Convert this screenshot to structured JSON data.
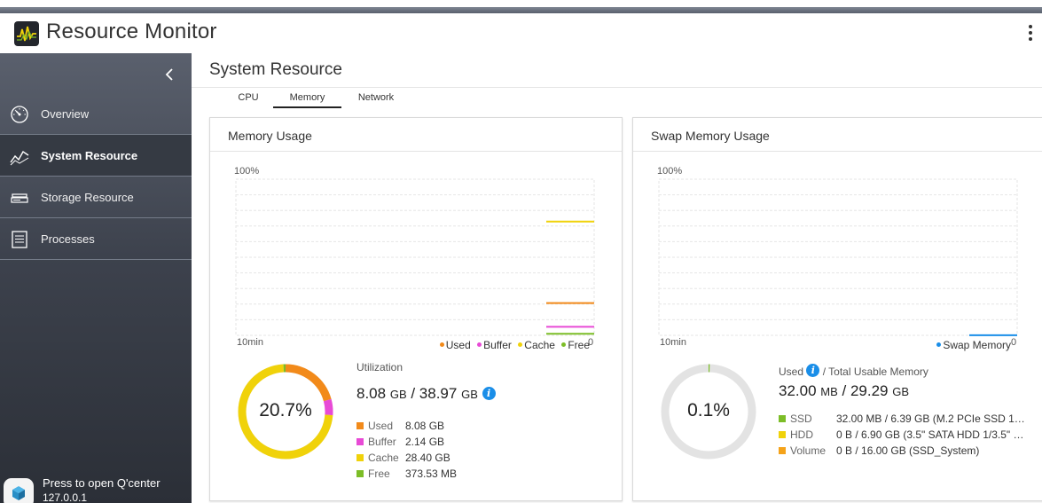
{
  "app": {
    "title": "Resource Monitor"
  },
  "sidebar": {
    "items": [
      {
        "label": "Overview",
        "icon": "speedometer-icon"
      },
      {
        "label": "System Resource",
        "icon": "line-chart-icon"
      },
      {
        "label": "Storage Resource",
        "icon": "storage-icon"
      },
      {
        "label": "Processes",
        "icon": "list-icon"
      }
    ],
    "active": "System Resource",
    "footer": {
      "line1": "Press to open Q'center",
      "line2": "127.0.0.1"
    }
  },
  "page": {
    "title": "System Resource",
    "tabs": [
      {
        "label": "CPU"
      },
      {
        "label": "Memory"
      },
      {
        "label": "Network"
      }
    ],
    "active_tab": "Memory"
  },
  "memory_card": {
    "title": "Memory Usage",
    "chart": {
      "y_top": "100%",
      "x_left": "10min",
      "y_bottom": "0"
    },
    "legend": [
      {
        "label": "Used",
        "color": "#f28a1a"
      },
      {
        "label": "Buffer",
        "color": "#e84ad6"
      },
      {
        "label": "Cache",
        "color": "#f0d20a"
      },
      {
        "label": "Free",
        "color": "#7cbd27"
      }
    ],
    "donut_text": "20.7%",
    "utilization_label": "Utilization",
    "utilization": {
      "used": "8.08",
      "used_unit": "GB",
      "sep": " / ",
      "total": "38.97",
      "total_unit": "GB"
    },
    "breakdown": [
      {
        "name": "Used",
        "value": "8.08 GB",
        "color": "#f28a1a"
      },
      {
        "name": "Buffer",
        "value": "2.14 GB",
        "color": "#e84ad6"
      },
      {
        "name": "Cache",
        "value": "28.40 GB",
        "color": "#f0d20a"
      },
      {
        "name": "Free",
        "value": "373.53 MB",
        "color": "#7cbd27"
      }
    ]
  },
  "swap_card": {
    "title": "Swap Memory Usage",
    "chart": {
      "y_top": "100%",
      "x_left": "10min",
      "y_bottom": "0"
    },
    "legend": [
      {
        "label": "Swap Memory",
        "color": "#1a8ee8"
      }
    ],
    "donut_text": "0.1%",
    "used_label": "Used",
    "total_label": "/ Total Usable Memory",
    "usage": {
      "used": "32.00",
      "used_unit": "MB",
      "sep": " / ",
      "total": "29.29",
      "total_unit": "GB"
    },
    "breakdown": [
      {
        "name": "SSD",
        "value": "32.00 MB / 6.39 GB (M.2 PCIe SSD 1…",
        "color": "#7cbd27"
      },
      {
        "name": "HDD",
        "value": "0 B / 6.90 GB (3.5\" SATA HDD 1/3.5\" …",
        "color": "#f0d20a"
      },
      {
        "name": "Volume",
        "value": "0 B / 16.00 GB (SSD_System)",
        "color": "#f5a31a"
      }
    ]
  },
  "chart_data": [
    {
      "type": "line",
      "series": [
        {
          "name": "Used",
          "values": [
            20.7
          ]
        },
        {
          "name": "Buffer",
          "values": [
            5.5
          ]
        },
        {
          "name": "Cache",
          "values": [
            72.9
          ]
        },
        {
          "name": "Free",
          "values": [
            1.0
          ]
        }
      ],
      "ylim": [
        0,
        100
      ],
      "grid": true
    },
    {
      "type": "line",
      "series": [
        {
          "name": "Swap Memory",
          "values": [
            0.1
          ]
        }
      ],
      "ylim": [
        0,
        100
      ],
      "grid": true
    }
  ]
}
